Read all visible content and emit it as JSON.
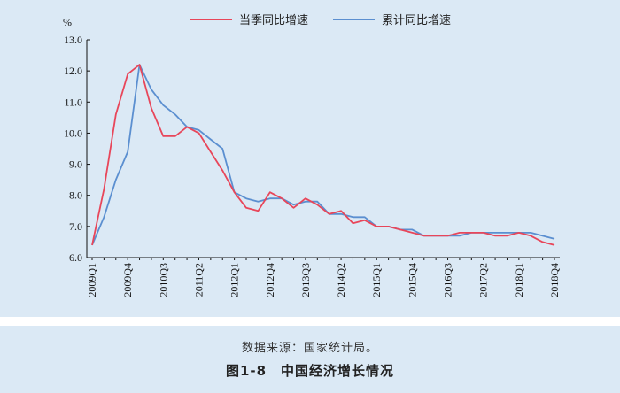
{
  "source_text": "数据来源：国家统计局。",
  "figure_title": "图1-8　中国经济增长情况",
  "colors": {
    "quarterly": "#e8465a",
    "cumulative": "#5b8fd0",
    "panel": "#dbe9f5"
  },
  "chart_data": {
    "type": "line",
    "ylabel": "%",
    "ylim": [
      6.0,
      13.0
    ],
    "yticks": [
      "6.0",
      "7.0",
      "8.0",
      "9.0",
      "10.0",
      "11.0",
      "12.0",
      "13.0"
    ],
    "xtick_labels": [
      "2009Q1",
      "2009Q4",
      "2010Q3",
      "2011Q2",
      "2012Q1",
      "2012Q4",
      "2013Q3",
      "2014Q2",
      "2015Q1",
      "2015Q4",
      "2016Q3",
      "2017Q2",
      "2018Q1",
      "2018Q4"
    ],
    "x": [
      "2009Q1",
      "2009Q2",
      "2009Q3",
      "2009Q4",
      "2010Q1",
      "2010Q2",
      "2010Q3",
      "2010Q4",
      "2011Q1",
      "2011Q2",
      "2011Q3",
      "2011Q4",
      "2012Q1",
      "2012Q2",
      "2012Q3",
      "2012Q4",
      "2013Q1",
      "2013Q2",
      "2013Q3",
      "2013Q4",
      "2014Q1",
      "2014Q2",
      "2014Q3",
      "2014Q4",
      "2015Q1",
      "2015Q2",
      "2015Q3",
      "2015Q4",
      "2016Q1",
      "2016Q2",
      "2016Q3",
      "2016Q4",
      "2017Q1",
      "2017Q2",
      "2017Q3",
      "2017Q4",
      "2018Q1",
      "2018Q2",
      "2018Q3",
      "2018Q4"
    ],
    "series": [
      {
        "name": "当季同比增速",
        "values": [
          6.4,
          8.2,
          10.6,
          11.9,
          12.2,
          10.8,
          9.9,
          9.9,
          10.2,
          10.0,
          9.4,
          8.8,
          8.1,
          7.6,
          7.5,
          8.1,
          7.9,
          7.6,
          7.9,
          7.7,
          7.4,
          7.5,
          7.1,
          7.2,
          7.0,
          7.0,
          6.9,
          6.8,
          6.7,
          6.7,
          6.7,
          6.8,
          6.8,
          6.8,
          6.7,
          6.7,
          6.8,
          6.7,
          6.5,
          6.4
        ]
      },
      {
        "name": "累计同比增速",
        "values": [
          6.4,
          7.3,
          8.5,
          9.4,
          12.2,
          11.4,
          10.9,
          10.6,
          10.2,
          10.1,
          9.8,
          9.5,
          8.1,
          7.9,
          7.8,
          7.9,
          7.9,
          7.7,
          7.8,
          7.8,
          7.4,
          7.4,
          7.3,
          7.3,
          7.0,
          7.0,
          6.9,
          6.9,
          6.7,
          6.7,
          6.7,
          6.7,
          6.8,
          6.8,
          6.8,
          6.8,
          6.8,
          6.8,
          6.7,
          6.6
        ]
      }
    ]
  }
}
